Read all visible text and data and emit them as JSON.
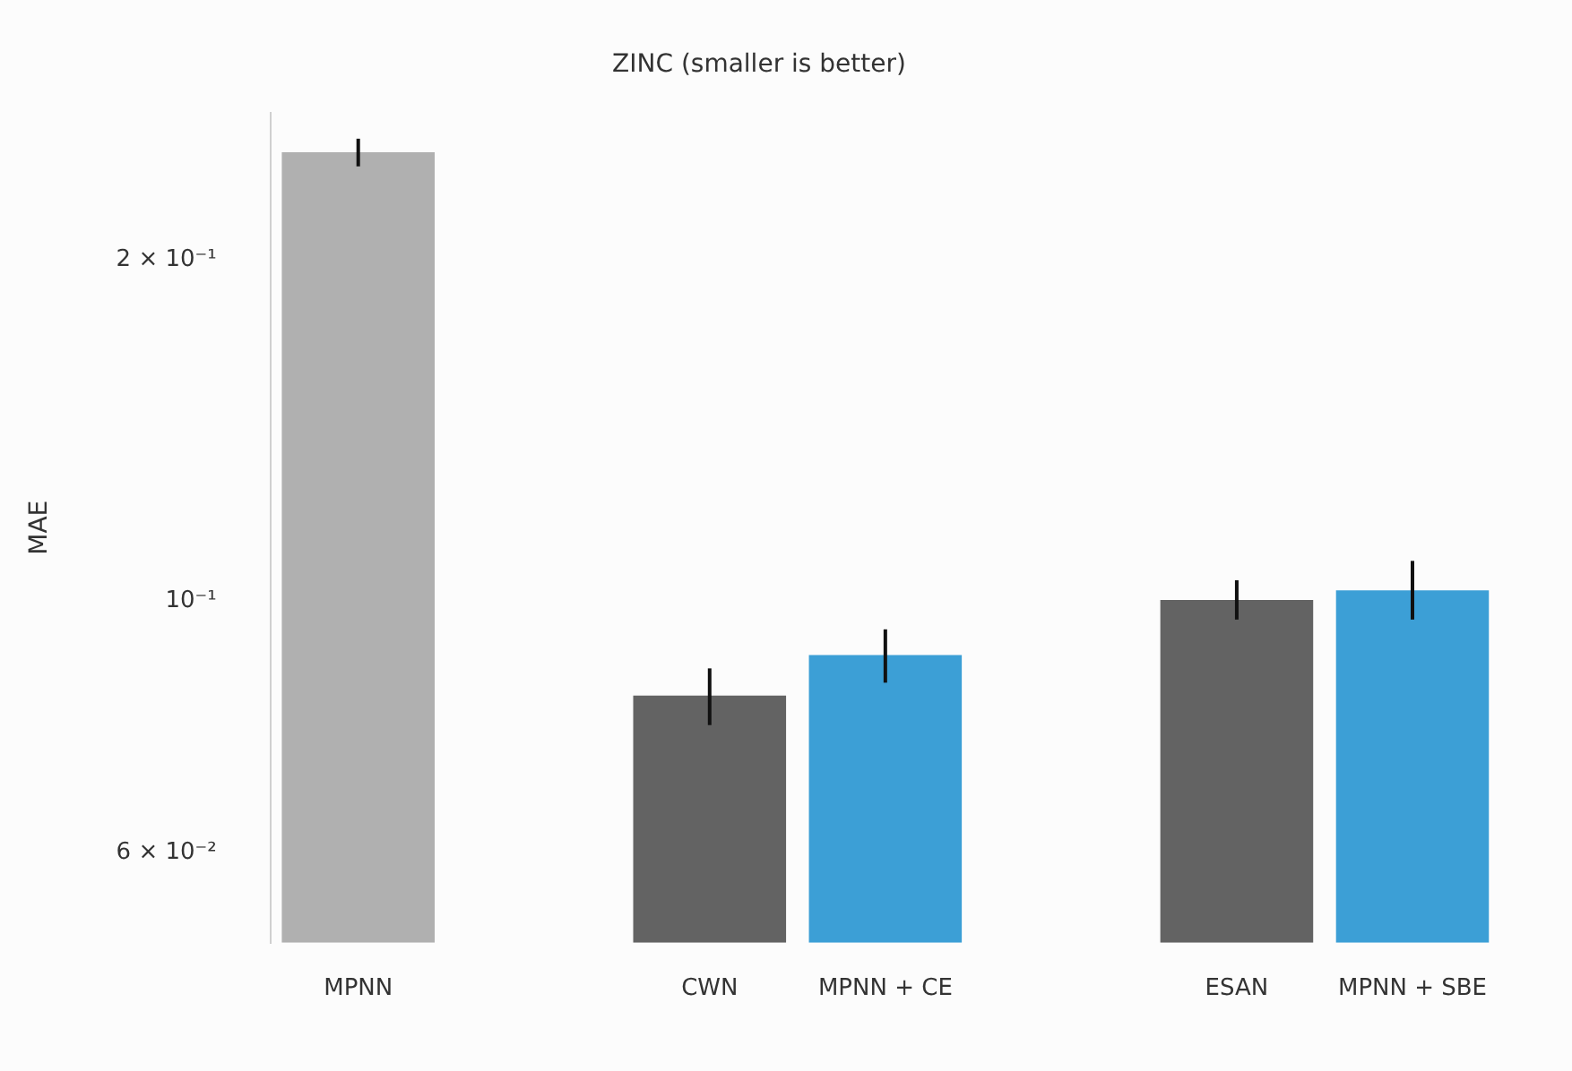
{
  "chart_data": {
    "type": "bar",
    "title": "ZINC (smaller is better)",
    "ylabel": "MAE",
    "categories": [
      "MPNN",
      null,
      "CWN",
      "MPNN + CE",
      null,
      "ESAN",
      "MPNN + SBE"
    ],
    "values": [
      0.249,
      null,
      0.0826,
      0.0897,
      null,
      0.1003,
      0.1023
    ],
    "colors": [
      "#b0b0b0",
      "#b0b0b0",
      "#636363",
      "#3c9fd6",
      "#636363",
      "#636363",
      "#3c9fd6"
    ],
    "errors": [
      [
        0.242,
        0.256
      ],
      null,
      [
        0.0778,
        0.0873
      ],
      [
        0.0848,
        0.0945
      ],
      null,
      [
        0.0964,
        0.1044
      ],
      [
        0.0964,
        0.1086
      ]
    ],
    "log": true,
    "ylim": [
      0.05,
      0.27
    ],
    "yticks": [
      {
        "value": 0.06,
        "label": "6 × 10⁻²"
      },
      {
        "value": 0.1,
        "label": "10⁻¹"
      },
      {
        "value": 0.2,
        "label": "2 × 10⁻¹"
      }
    ],
    "grid": false,
    "legend": false
  }
}
